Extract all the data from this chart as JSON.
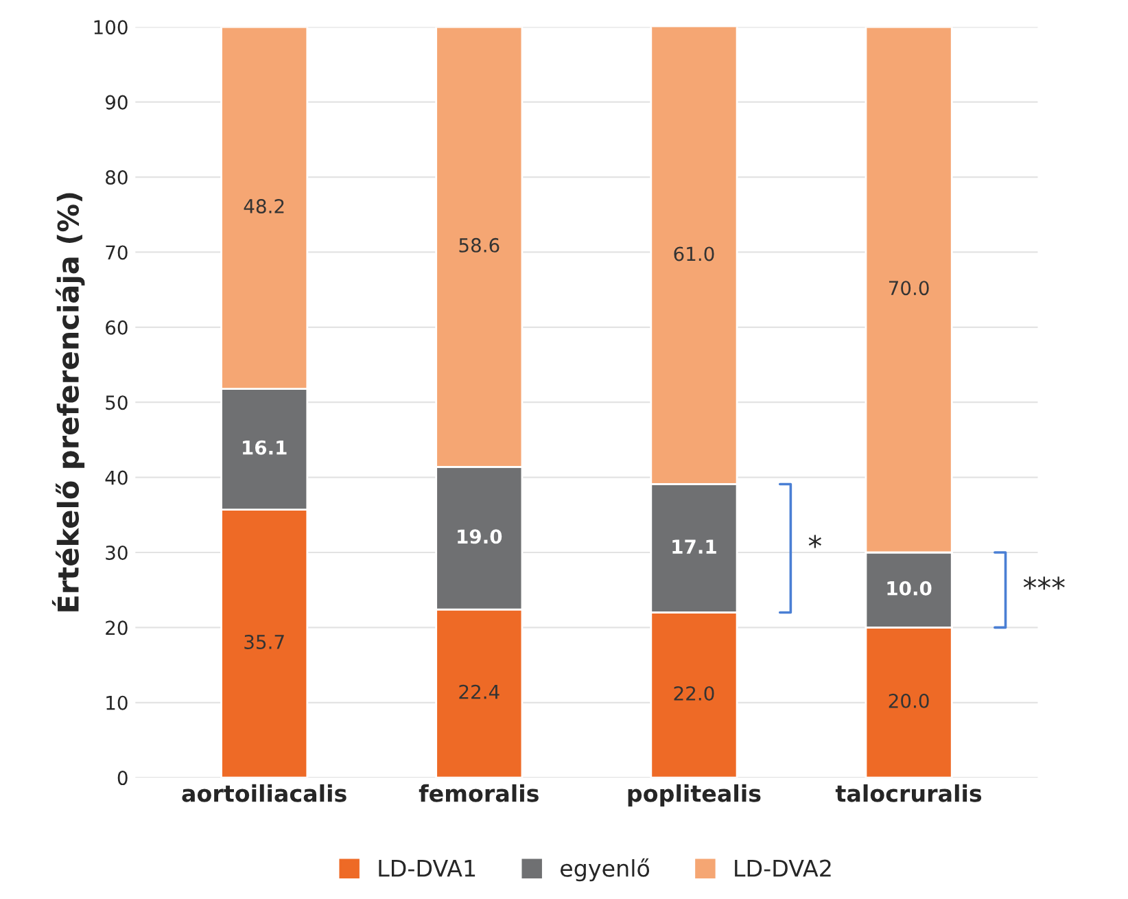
{
  "chart_data": {
    "type": "bar",
    "stacked": true,
    "ylabel": "Értékelő preferenciája (%)",
    "categories": [
      "aortoiliacalis",
      "femoralis",
      "poplitealis",
      "talocruralis"
    ],
    "series": [
      {
        "name": "LD-DVA1",
        "color": "#ee6a26",
        "values": [
          35.7,
          22.4,
          22.0,
          20.0
        ],
        "value_labels": [
          "35.7",
          "22.4",
          "22.0",
          "20.0"
        ]
      },
      {
        "name": "egyenlő",
        "color": "#6f7072",
        "values": [
          16.1,
          19.0,
          17.1,
          10.0
        ],
        "value_labels": [
          "16.1",
          "19.0",
          "17.1",
          "10.0"
        ]
      },
      {
        "name": "LD-DVA2",
        "color": "#f5a673",
        "values": [
          48.2,
          58.6,
          61.0,
          70.0
        ],
        "value_labels": [
          "48.2",
          "58.6",
          "61.0",
          "70.0"
        ]
      }
    ],
    "ylim": [
      0,
      100
    ],
    "yticks": [
      0,
      10,
      20,
      30,
      40,
      50,
      60,
      70,
      80,
      90,
      100
    ],
    "grid": "y",
    "legend": "bottom",
    "annotations": [
      "*",
      "***"
    ]
  }
}
